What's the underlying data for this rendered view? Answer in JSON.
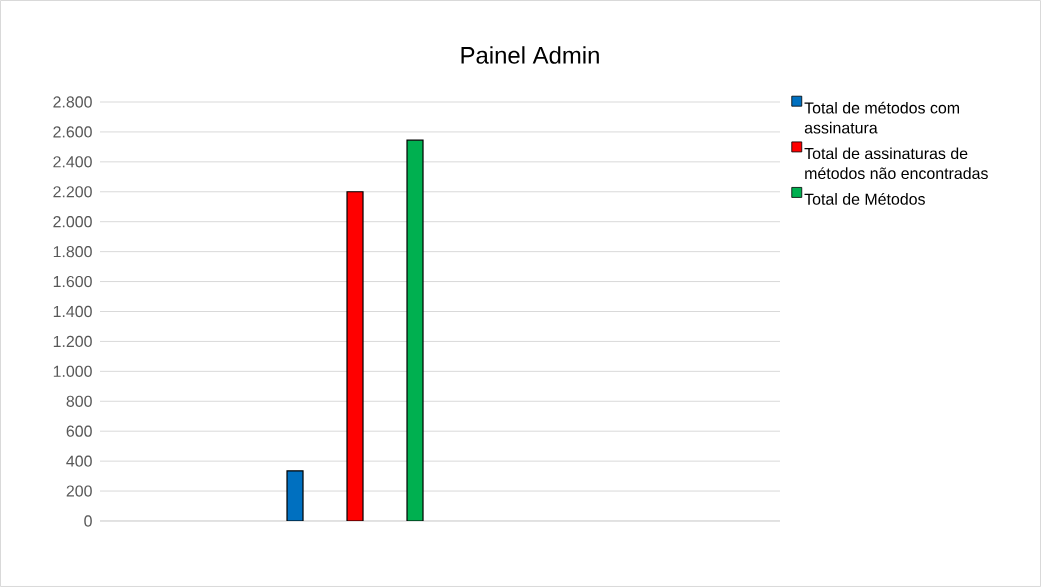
{
  "chart_data": {
    "type": "bar",
    "title": "Painel Admin",
    "categories": [
      null
    ],
    "series": [
      {
        "name": "Total de métodos com assinatura",
        "color": "#0070c0",
        "values": [
          335
        ]
      },
      {
        "name": "Total de assinaturas de métodos não encontradas",
        "color": "#ff0000",
        "values": [
          2200
        ]
      },
      {
        "name": "Total de Métodos",
        "color": "#00b050",
        "values": [
          2545
        ]
      }
    ],
    "ylim": [
      0,
      2800
    ],
    "yticks": [
      {
        "value": 0,
        "label": "0"
      },
      {
        "value": 200,
        "label": "200"
      },
      {
        "value": 400,
        "label": "400"
      },
      {
        "value": 600,
        "label": "600"
      },
      {
        "value": 800,
        "label": "800"
      },
      {
        "value": 1000,
        "label": "1.000"
      },
      {
        "value": 1200,
        "label": "1.200"
      },
      {
        "value": 1400,
        "label": "1.400"
      },
      {
        "value": 1600,
        "label": "1.600"
      },
      {
        "value": 1800,
        "label": "1.800"
      },
      {
        "value": 2000,
        "label": "2.000"
      },
      {
        "value": 2200,
        "label": "2.200"
      },
      {
        "value": 2400,
        "label": "2.400"
      },
      {
        "value": 2600,
        "label": "2.600"
      },
      {
        "value": 2800,
        "label": "2.800"
      }
    ],
    "grid": "y",
    "legend": "right",
    "tick_labels": "y"
  }
}
